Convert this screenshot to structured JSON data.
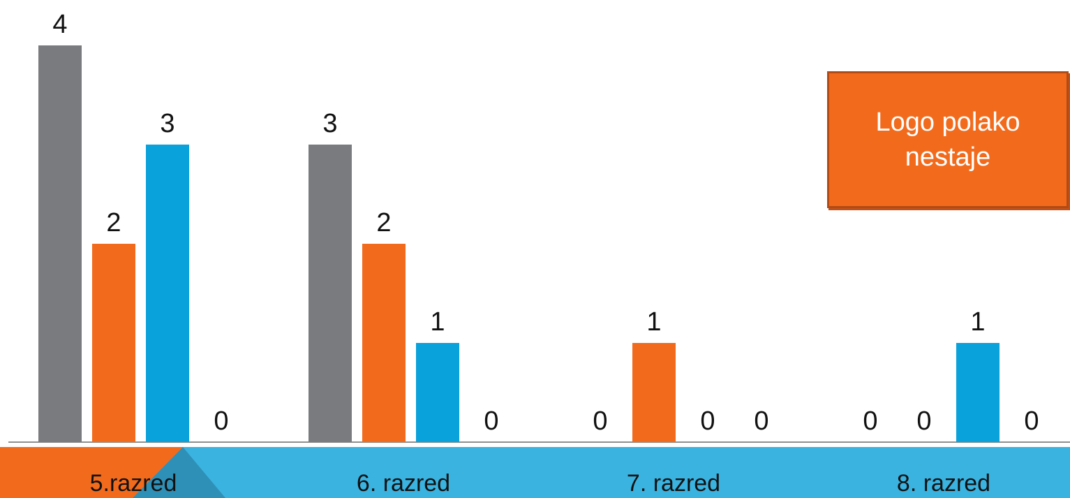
{
  "chart_data": {
    "type": "bar",
    "categories": [
      "5.razred",
      "6. razred",
      "7. razred",
      "8. razred"
    ],
    "series": [
      {
        "color": "#7a7b7f",
        "values": [
          4,
          3,
          0,
          0
        ]
      },
      {
        "color": "#f26b1d",
        "values": [
          2,
          2,
          1,
          0
        ]
      },
      {
        "color": "#0aa2da",
        "values": [
          3,
          1,
          0,
          1
        ]
      },
      {
        "color": "#7a7b7f",
        "values": [
          0,
          0,
          0,
          0
        ]
      }
    ],
    "ylim": [
      0,
      4
    ],
    "grid": false,
    "data_labels": true
  },
  "callout": {
    "text": "Logo polako\nnestaje",
    "background": "#f26b1d"
  },
  "colors": {
    "band_orange": "#f26b1d",
    "band_blue": "#3ab3e0",
    "band_wedge": "#2f90b7"
  }
}
